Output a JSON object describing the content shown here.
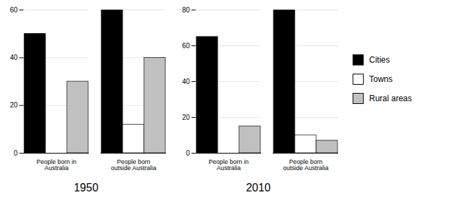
{
  "chart_data": [
    {
      "type": "bar",
      "title": "1950",
      "categories": [
        "People born in Australia",
        "People born outside Australia"
      ],
      "series": [
        {
          "name": "Cities",
          "color": "#000000",
          "values": [
            50,
            60
          ]
        },
        {
          "name": "Towns",
          "color": "#ffffff",
          "values": [
            0,
            12
          ]
        },
        {
          "name": "Rural areas",
          "color": "#c0c0c0",
          "values": [
            30,
            40
          ]
        }
      ],
      "ylim": [
        0,
        60
      ],
      "yticks": [
        0,
        20,
        40,
        60
      ],
      "grid": true
    },
    {
      "type": "bar",
      "title": "2010",
      "categories": [
        "People born in Australia",
        "People born outside Australia"
      ],
      "series": [
        {
          "name": "Cities",
          "color": "#000000",
          "values": [
            65,
            80
          ]
        },
        {
          "name": "Towns",
          "color": "#ffffff",
          "values": [
            0,
            10
          ]
        },
        {
          "name": "Rural areas",
          "color": "#c0c0c0",
          "values": [
            15,
            7
          ]
        }
      ],
      "ylim": [
        0,
        80
      ],
      "yticks": [
        0,
        20,
        40,
        60,
        80
      ],
      "grid": true,
      "legend": "right"
    }
  ]
}
